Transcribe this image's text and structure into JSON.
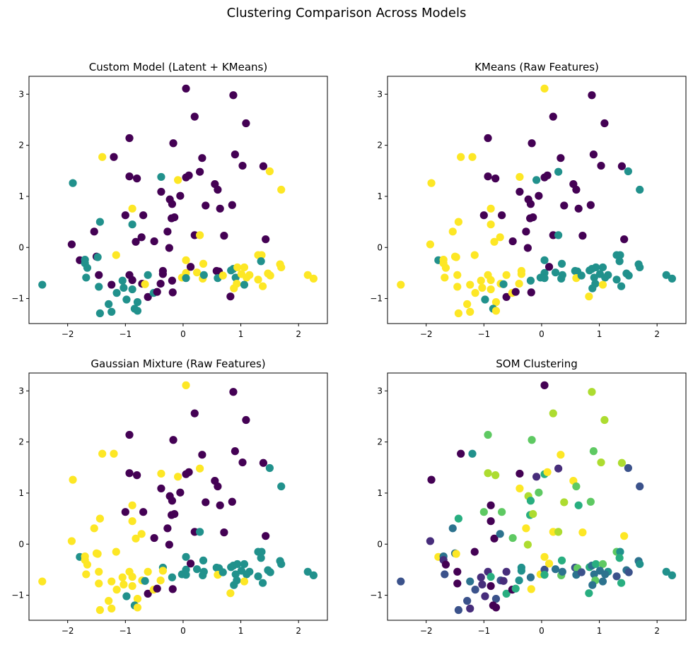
{
  "suptitle": "Clustering Comparison Across Models",
  "shared_points": {
    "x": [
      0.05,
      0.87,
      0.2,
      1.09,
      -0.93,
      -0.17,
      -1.4,
      -1.2,
      0.33,
      0.9,
      1.03,
      1.39,
      1.5,
      -1.91,
      -0.93,
      -0.8,
      -0.38,
      -0.09,
      0.05,
      0.1,
      0.29,
      1.7,
      0.55,
      0.6,
      -0.38,
      -0.23,
      -0.05,
      -0.19,
      0.39,
      0.64,
      0.85,
      -0.88,
      -1.0,
      -0.69,
      -1.44,
      -0.88,
      -0.2,
      -0.15,
      -1.54,
      -0.27,
      -1.93,
      -0.82,
      -0.72,
      -0.5,
      -0.24,
      0.2,
      0.29,
      0.71,
      1.43,
      -1.16,
      -1.79,
      -1.7,
      -1.5,
      -1.48,
      -1.7,
      -1.66,
      -1.68,
      -1.46,
      -1.46,
      -2.44,
      -1.24,
      -1.29,
      -1.24,
      -1.44,
      -1.15,
      -1.05,
      -1.03,
      -0.98,
      -0.93,
      -0.88,
      -0.88,
      -0.79,
      -0.84,
      -0.79,
      -0.71,
      -0.66,
      -0.61,
      -0.61,
      -0.51,
      -0.45,
      -0.39,
      -0.35,
      -0.35,
      -0.19,
      -0.18,
      -0.02,
      0.05,
      0.05,
      0.05,
      0.13,
      0.24,
      0.35,
      0.34,
      0.36,
      0.58,
      0.62,
      0.6,
      0.69,
      0.82,
      0.83,
      0.87,
      0.91,
      0.94,
      1.06,
      1.01,
      1.15,
      1.1,
      0.93,
      0.88,
      1.06,
      1.3,
      1.36,
      1.35,
      1.3,
      1.38,
      1.47,
      1.51,
      1.68,
      1.7,
      2.16,
      2.26
    ],
    "y": [
      3.11,
      2.98,
      2.56,
      2.43,
      2.14,
      2.04,
      1.77,
      1.77,
      1.75,
      1.82,
      1.6,
      1.59,
      1.49,
      1.26,
      1.39,
      1.35,
      1.38,
      1.32,
      1.37,
      1.41,
      1.48,
      1.13,
      1.24,
      1.13,
      1.09,
      0.94,
      1.01,
      0.85,
      0.82,
      0.76,
      0.83,
      0.76,
      0.63,
      0.63,
      0.5,
      0.45,
      0.57,
      0.59,
      0.31,
      0.31,
      0.06,
      0.11,
      0.2,
      0.12,
      -0.01,
      0.24,
      0.24,
      0.23,
      0.16,
      -0.15,
      -0.25,
      -0.24,
      -0.18,
      -0.19,
      -0.31,
      -0.4,
      -0.59,
      -0.54,
      -0.77,
      -0.73,
      -0.73,
      -1.11,
      -1.26,
      -1.29,
      -0.89,
      -0.65,
      -0.79,
      -1.02,
      -0.54,
      -0.64,
      -0.82,
      -1.07,
      -1.2,
      -1.24,
      -0.71,
      -0.72,
      -0.54,
      -0.97,
      -0.89,
      -0.87,
      -0.71,
      -0.46,
      -0.52,
      -0.65,
      -0.88,
      -0.59,
      -0.25,
      -0.5,
      -0.6,
      -0.38,
      -0.49,
      -0.32,
      -0.61,
      -0.54,
      -0.46,
      -0.47,
      -0.6,
      -0.55,
      -0.96,
      -0.45,
      -0.42,
      -0.59,
      -0.39,
      -0.39,
      -0.52,
      -0.54,
      -0.59,
      -0.71,
      -0.8,
      -0.73,
      -0.15,
      -0.15,
      -0.27,
      -0.63,
      -0.76,
      -0.51,
      -0.55,
      -0.33,
      -0.39,
      -0.54,
      -0.61
    ]
  },
  "chart_data": [
    {
      "type": "scatter",
      "title": "Custom Model (Latent + KMeans)",
      "xlim": [
        -2.67,
        2.5
      ],
      "ylim": [
        -1.49,
        3.35
      ],
      "xticks": [
        -2,
        -1,
        0,
        1,
        2
      ],
      "yticks": [
        -1,
        0,
        1,
        2,
        3
      ],
      "palette": [
        "#440154",
        "#21918c",
        "#fde725"
      ],
      "labels": [
        0,
        0,
        0,
        0,
        0,
        0,
        2,
        0,
        0,
        0,
        0,
        0,
        2,
        1,
        0,
        0,
        1,
        2,
        0,
        0,
        0,
        2,
        0,
        0,
        0,
        0,
        0,
        0,
        0,
        0,
        0,
        2,
        0,
        0,
        1,
        1,
        0,
        0,
        0,
        0,
        0,
        0,
        0,
        0,
        0,
        0,
        2,
        0,
        0,
        2,
        0,
        1,
        0,
        1,
        1,
        1,
        1,
        0,
        1,
        1,
        0,
        1,
        1,
        1,
        1,
        1,
        1,
        1,
        0,
        0,
        1,
        1,
        1,
        1,
        0,
        2,
        1,
        0,
        1,
        0,
        0,
        0,
        0,
        0,
        0,
        2,
        2,
        2,
        1,
        0,
        2,
        2,
        2,
        1,
        0,
        0,
        1,
        2,
        0,
        1,
        1,
        1,
        2,
        2,
        2,
        2,
        2,
        2,
        2,
        1,
        2,
        2,
        1,
        2,
        2,
        2,
        2,
        2,
        2,
        2,
        2
      ]
    },
    {
      "type": "scatter",
      "title": "KMeans (Raw Features)",
      "xlim": [
        -2.67,
        2.5
      ],
      "ylim": [
        -1.49,
        3.35
      ],
      "xticks": [
        -2,
        -1,
        0,
        1,
        2
      ],
      "yticks": [
        -1,
        0,
        1,
        2,
        3
      ],
      "palette": [
        "#440154",
        "#21918c",
        "#fde725"
      ],
      "labels": [
        2,
        0,
        0,
        0,
        0,
        0,
        2,
        2,
        0,
        0,
        0,
        0,
        1,
        2,
        0,
        0,
        2,
        1,
        0,
        0,
        1,
        1,
        0,
        0,
        0,
        0,
        0,
        0,
        0,
        0,
        0,
        2,
        0,
        0,
        2,
        2,
        0,
        0,
        2,
        0,
        2,
        2,
        2,
        0,
        0,
        0,
        1,
        0,
        0,
        2,
        1,
        2,
        2,
        2,
        2,
        2,
        2,
        2,
        2,
        2,
        2,
        2,
        2,
        2,
        2,
        2,
        2,
        1,
        2,
        2,
        2,
        2,
        1,
        2,
        2,
        1,
        2,
        0,
        2,
        0,
        2,
        2,
        2,
        1,
        0,
        1,
        1,
        1,
        1,
        0,
        1,
        1,
        1,
        1,
        1,
        1,
        2,
        1,
        2,
        1,
        1,
        1,
        1,
        1,
        1,
        1,
        1,
        1,
        1,
        2,
        1,
        1,
        1,
        1,
        1,
        1,
        1,
        1,
        1,
        1,
        1
      ]
    },
    {
      "type": "scatter",
      "title": "Gaussian Mixture (Raw Features)",
      "xlim": [
        -2.67,
        2.5
      ],
      "ylim": [
        -1.49,
        3.35
      ],
      "xticks": [
        -2,
        -1,
        0,
        1,
        2
      ],
      "yticks": [
        -1,
        0,
        1,
        2,
        3
      ],
      "palette": [
        "#440154",
        "#21918c",
        "#fde725"
      ],
      "labels": [
        2,
        0,
        0,
        0,
        0,
        0,
        2,
        2,
        0,
        0,
        0,
        0,
        1,
        2,
        0,
        0,
        2,
        2,
        0,
        0,
        2,
        1,
        0,
        0,
        0,
        0,
        0,
        0,
        0,
        0,
        0,
        2,
        0,
        0,
        2,
        2,
        0,
        0,
        2,
        0,
        2,
        2,
        2,
        0,
        0,
        0,
        1,
        0,
        0,
        2,
        1,
        2,
        2,
        2,
        2,
        2,
        2,
        2,
        2,
        2,
        2,
        2,
        2,
        2,
        2,
        2,
        2,
        1,
        2,
        2,
        2,
        2,
        1,
        2,
        2,
        1,
        2,
        0,
        2,
        0,
        2,
        1,
        2,
        1,
        0,
        1,
        1,
        1,
        1,
        0,
        1,
        1,
        1,
        1,
        1,
        1,
        2,
        1,
        2,
        1,
        1,
        1,
        1,
        1,
        1,
        1,
        1,
        1,
        1,
        2,
        1,
        1,
        1,
        1,
        1,
        1,
        1,
        1,
        1,
        1,
        1
      ]
    },
    {
      "type": "scatter",
      "title": "SOM Clustering",
      "xlim": [
        -2.67,
        2.5
      ],
      "ylim": [
        -1.49,
        3.35
      ],
      "xticks": [
        -2,
        -1,
        0,
        1,
        2
      ],
      "yticks": [
        -1,
        0,
        1,
        2,
        3
      ],
      "palette": [
        "#440154",
        "#472d7b",
        "#3b528b",
        "#2c728e",
        "#21918c",
        "#28ae80",
        "#5ec962",
        "#addc30",
        "#fde725"
      ],
      "labels": [
        0,
        7,
        7,
        7,
        6,
        6,
        0,
        4,
        8,
        6,
        7,
        7,
        2,
        0,
        7,
        7,
        0,
        1,
        5,
        8,
        1,
        2,
        8,
        6,
        8,
        7,
        6,
        5,
        7,
        5,
        6,
        0,
        6,
        6,
        5,
        0,
        5,
        7,
        3,
        8,
        1,
        0,
        3,
        6,
        7,
        8,
        7,
        8,
        8,
        0,
        8,
        3,
        3,
        8,
        1,
        0,
        2,
        0,
        0,
        2,
        3,
        2,
        1,
        2,
        2,
        1,
        1,
        1,
        1,
        5,
        0,
        2,
        0,
        0,
        2,
        1,
        1,
        5,
        0,
        5,
        4,
        4,
        4,
        3,
        8,
        8,
        8,
        2,
        5,
        8,
        3,
        5,
        6,
        3,
        2,
        6,
        3,
        2,
        5,
        5,
        3,
        3,
        5,
        6,
        3,
        4,
        3,
        6,
        3,
        3,
        6,
        4,
        5,
        2,
        5,
        3,
        2,
        3,
        4,
        4,
        4
      ]
    }
  ]
}
